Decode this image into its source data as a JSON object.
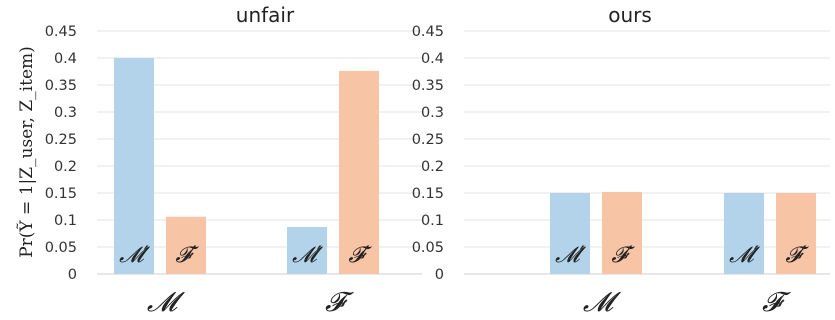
{
  "ylabel": "Pr(Ỹ = 1|Z_user, Z_item)",
  "chart_data": [
    {
      "type": "bar",
      "title": "unfair",
      "categories": [
        "𝓜",
        "𝓕"
      ],
      "series": [
        {
          "name": "𝓜′",
          "color": "#b2d3ea",
          "values": [
            0.4,
            0.087
          ]
        },
        {
          "name": "𝓕′",
          "color": "#f8c4a6",
          "values": [
            0.106,
            0.376
          ]
        }
      ],
      "ylim": [
        0,
        0.45
      ],
      "yticks": [
        "0",
        "0.05",
        "0.1",
        "0.15",
        "0.2",
        "0.25",
        "0.3",
        "0.35",
        "0.4",
        "0.45"
      ],
      "grid": true
    },
    {
      "type": "bar",
      "title": "ours",
      "categories": [
        "𝓜",
        "𝓕"
      ],
      "series": [
        {
          "name": "𝓜′",
          "color": "#b2d3ea",
          "values": [
            0.15,
            0.15
          ]
        },
        {
          "name": "𝓕′",
          "color": "#f8c4a6",
          "values": [
            0.152,
            0.15
          ]
        }
      ],
      "ylim": [
        0,
        0.45
      ],
      "yticks": [
        "0",
        "0.05",
        "0.1",
        "0.15",
        "0.2",
        "0.25",
        "0.3",
        "0.35",
        "0.4",
        "0.45"
      ],
      "grid": true
    }
  ]
}
